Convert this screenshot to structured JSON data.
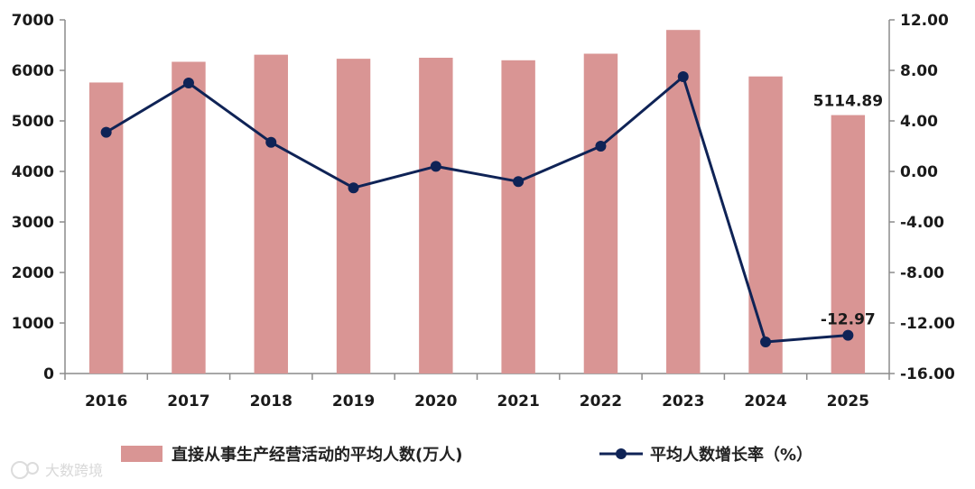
{
  "chart_data": {
    "type": "bar+line",
    "categories": [
      "2016",
      "2017",
      "2018",
      "2019",
      "2020",
      "2021",
      "2022",
      "2023",
      "2024",
      "2025"
    ],
    "series": [
      {
        "name": "直接从事生产经营活动的平均人数(万人)",
        "type": "bar",
        "axis": "left",
        "color": "#d99594",
        "values": [
          5760,
          6170,
          6310,
          6230,
          6250,
          6200,
          6330,
          6800,
          5880,
          5114.89
        ]
      },
      {
        "name": "平均人数增长率（%）",
        "type": "line",
        "axis": "right",
        "color": "#0f2356",
        "values": [
          3.1,
          7.0,
          2.3,
          -1.3,
          0.4,
          -0.8,
          2.0,
          7.5,
          -13.5,
          -12.97
        ]
      }
    ],
    "y_left": {
      "min": 0,
      "max": 7000,
      "step": 1000,
      "ticks": [
        "0",
        "1000",
        "2000",
        "3000",
        "4000",
        "5000",
        "6000",
        "7000"
      ]
    },
    "y_right": {
      "min": -16,
      "max": 12,
      "step": 4,
      "ticks": [
        "-16.00",
        "-12.00",
        "-8.00",
        "-4.00",
        "0.00",
        "4.00",
        "8.00",
        "12.00"
      ]
    },
    "data_labels": [
      {
        "series": 0,
        "index": 9,
        "text": "5114.89"
      },
      {
        "series": 1,
        "index": 9,
        "text": "-12.97"
      }
    ],
    "legend": {
      "position": "bottom",
      "items": [
        "直接从事生产经营活动的平均人数(万人)",
        "平均人数增长率（%）"
      ]
    },
    "grid": false
  },
  "watermark": {
    "text": "大数跨境"
  }
}
